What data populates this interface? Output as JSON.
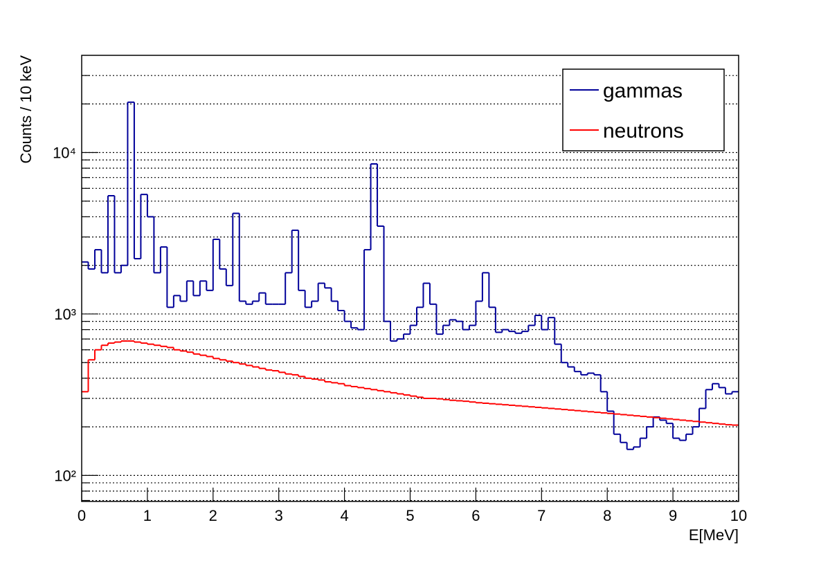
{
  "chart_data": {
    "type": "histogram",
    "x_label": "E[MeV]",
    "y_label": "Counts / 10 keV",
    "bins": [
      0,
      0.1,
      0.2,
      0.3,
      0.4,
      0.5,
      0.6,
      0.7,
      0.8,
      0.9,
      1,
      1.1,
      1.2,
      1.3,
      1.4,
      1.5,
      1.6,
      1.7,
      1.8,
      1.9,
      2,
      2.1,
      2.2,
      2.3,
      2.4,
      2.5,
      2.6,
      2.7,
      2.8,
      2.9,
      3,
      3.1,
      3.2,
      3.3,
      3.4,
      3.5,
      3.6,
      3.7,
      3.8,
      3.9,
      4,
      4.1,
      4.2,
      4.3,
      4.4,
      4.5,
      4.6,
      4.7,
      4.8,
      4.9,
      5,
      5.1,
      5.2,
      5.3,
      5.4,
      5.5,
      5.6,
      5.7,
      5.8,
      5.9,
      6,
      6.1,
      6.2,
      6.3,
      6.4,
      6.5,
      6.6,
      6.7,
      6.8,
      6.9,
      7,
      7.1,
      7.2,
      7.3,
      7.4,
      7.5,
      7.6,
      7.7,
      7.8,
      7.9,
      8,
      8.1,
      8.2,
      8.3,
      8.4,
      8.5,
      8.6,
      8.7,
      8.8,
      8.9,
      9,
      9.1,
      9.2,
      9.3,
      9.4,
      9.5,
      9.6,
      9.7,
      9.8,
      9.9,
      10
    ],
    "series": [
      {
        "name": "gammas",
        "color": "#000099",
        "values": [
          2100,
          1900,
          2500,
          1800,
          5400,
          1800,
          2000,
          20500,
          2200,
          5500,
          4000,
          1800,
          2600,
          1100,
          1300,
          1200,
          1600,
          1300,
          1600,
          1400,
          2900,
          1900,
          1500,
          4200,
          1200,
          1150,
          1200,
          1350,
          1150,
          1150,
          1150,
          1800,
          3300,
          1400,
          1100,
          1200,
          1550,
          1450,
          1200,
          1050,
          900,
          820,
          800,
          2500,
          8500,
          3500,
          900,
          680,
          700,
          750,
          850,
          1100,
          1550,
          1150,
          750,
          850,
          920,
          900,
          800,
          850,
          1200,
          1800,
          1100,
          770,
          800,
          780,
          760,
          780,
          850,
          980,
          800,
          950,
          650,
          500,
          470,
          440,
          420,
          430,
          420,
          330,
          250,
          180,
          160,
          145,
          150,
          170,
          200,
          230,
          220,
          210,
          170,
          165,
          180,
          200,
          260,
          340,
          370,
          350,
          320,
          330
        ]
      },
      {
        "name": "neutrons",
        "color": "#ff0000",
        "values": [
          330,
          520,
          600,
          640,
          660,
          670,
          680,
          680,
          670,
          660,
          650,
          640,
          630,
          620,
          600,
          590,
          580,
          565,
          555,
          545,
          530,
          520,
          510,
          500,
          490,
          480,
          470,
          460,
          450,
          445,
          435,
          425,
          420,
          410,
          400,
          395,
          390,
          380,
          375,
          370,
          360,
          355,
          350,
          345,
          340,
          335,
          330,
          325,
          320,
          315,
          310,
          305,
          300,
          300,
          298,
          295,
          292,
          290,
          288,
          285,
          282,
          280,
          278,
          276,
          274,
          272,
          270,
          268,
          266,
          264,
          262,
          260,
          258,
          256,
          254,
          252,
          250,
          248,
          246,
          244,
          242,
          240,
          238,
          236,
          234,
          232,
          230,
          228,
          226,
          224,
          222,
          220,
          218,
          216,
          214,
          212,
          210,
          208,
          206,
          205
        ]
      }
    ],
    "xlim": [
      0,
      10
    ],
    "xticks": [
      0,
      1,
      2,
      3,
      4,
      5,
      6,
      7,
      8,
      9,
      10
    ],
    "ylim": [
      69,
      40000
    ],
    "log_y": true,
    "yticks": [
      {
        "value": 100,
        "label": "10²"
      },
      {
        "value": 1000,
        "label": "10³"
      },
      {
        "value": 10000,
        "label": "10⁴"
      }
    ],
    "yminorticks": [
      70,
      80,
      90,
      200,
      300,
      400,
      500,
      600,
      700,
      800,
      900,
      2000,
      3000,
      4000,
      5000,
      6000,
      7000,
      8000,
      9000,
      20000,
      30000
    ],
    "grid": true,
    "legend": "top-right"
  }
}
